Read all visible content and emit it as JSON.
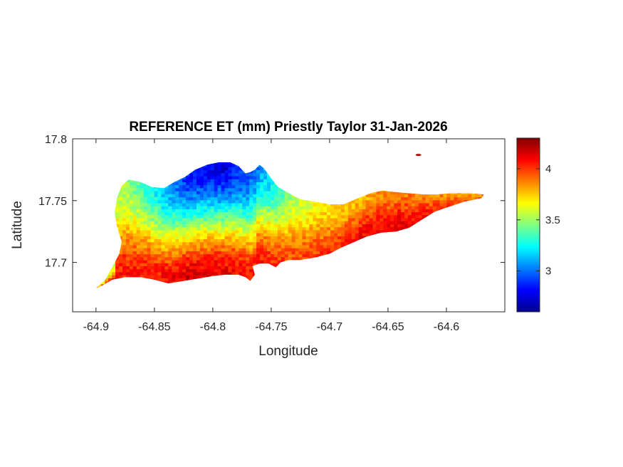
{
  "chart_data": {
    "type": "heatmap",
    "title": "REFERENCE ET (mm) Priestly Taylor 31-Jan-2026",
    "xlabel": "Longitude",
    "ylabel": "Latitude",
    "xlim": [
      -64.92,
      -64.55
    ],
    "ylim": [
      17.66,
      17.8
    ],
    "x_ticks": [
      -64.9,
      -64.85,
      -64.8,
      -64.75,
      -64.7,
      -64.65,
      -64.6
    ],
    "x_tick_labels": [
      "-64.9",
      "-64.85",
      "-64.8",
      "-64.75",
      "-64.7",
      "-64.65",
      "-64.6"
    ],
    "y_ticks": [
      17.7,
      17.75,
      17.8
    ],
    "y_tick_labels": [
      "17.7",
      "17.75",
      "17.8"
    ],
    "colorbar": {
      "colormap": "jet",
      "range": [
        2.6,
        4.3
      ],
      "ticks": [
        3,
        3.5,
        4
      ],
      "tick_labels": [
        "3",
        "3.5",
        "4"
      ]
    },
    "outline": [
      [
        -64.9,
        17.679
      ],
      [
        -64.892,
        17.686
      ],
      [
        -64.885,
        17.698
      ],
      [
        -64.88,
        17.707
      ],
      [
        -64.878,
        17.717
      ],
      [
        -64.882,
        17.729
      ],
      [
        -64.884,
        17.74
      ],
      [
        -64.882,
        17.752
      ],
      [
        -64.878,
        17.762
      ],
      [
        -64.872,
        17.767
      ],
      [
        -64.862,
        17.765
      ],
      [
        -64.852,
        17.761
      ],
      [
        -64.842,
        17.76
      ],
      [
        -64.833,
        17.765
      ],
      [
        -64.824,
        17.769
      ],
      [
        -64.815,
        17.775
      ],
      [
        -64.805,
        17.779
      ],
      [
        -64.795,
        17.781
      ],
      [
        -64.785,
        17.781
      ],
      [
        -64.778,
        17.778
      ],
      [
        -64.772,
        17.772
      ],
      [
        -64.768,
        17.773
      ],
      [
        -64.764,
        17.775
      ],
      [
        -64.76,
        17.779
      ],
      [
        -64.756,
        17.776
      ],
      [
        -64.75,
        17.768
      ],
      [
        -64.744,
        17.761
      ],
      [
        -64.735,
        17.756
      ],
      [
        -64.725,
        17.751
      ],
      [
        -64.712,
        17.749
      ],
      [
        -64.7,
        17.747
      ],
      [
        -64.688,
        17.747
      ],
      [
        -64.678,
        17.751
      ],
      [
        -64.665,
        17.756
      ],
      [
        -64.655,
        17.758
      ],
      [
        -64.645,
        17.757
      ],
      [
        -64.633,
        17.756
      ],
      [
        -64.62,
        17.755
      ],
      [
        -64.608,
        17.755
      ],
      [
        -64.595,
        17.756
      ],
      [
        -64.58,
        17.756
      ],
      [
        -64.568,
        17.755
      ],
      [
        -64.57,
        17.752
      ],
      [
        -64.585,
        17.749
      ],
      [
        -64.598,
        17.745
      ],
      [
        -64.61,
        17.741
      ],
      [
        -64.622,
        17.734
      ],
      [
        -64.632,
        17.728
      ],
      [
        -64.643,
        17.725
      ],
      [
        -64.656,
        17.724
      ],
      [
        -64.668,
        17.721
      ],
      [
        -64.68,
        17.716
      ],
      [
        -64.69,
        17.712
      ],
      [
        -64.7,
        17.707
      ],
      [
        -64.712,
        17.704
      ],
      [
        -64.725,
        17.702
      ],
      [
        -64.735,
        17.702
      ],
      [
        -64.742,
        17.7
      ],
      [
        -64.746,
        17.696
      ],
      [
        -64.752,
        17.699
      ],
      [
        -64.76,
        17.699
      ],
      [
        -64.766,
        17.697
      ],
      [
        -64.764,
        17.69
      ],
      [
        -64.768,
        17.685
      ],
      [
        -64.772,
        17.688
      ],
      [
        -64.778,
        17.69
      ],
      [
        -64.79,
        17.69
      ],
      [
        -64.8,
        17.689
      ],
      [
        -64.812,
        17.687
      ],
      [
        -64.825,
        17.685
      ],
      [
        -64.838,
        17.683
      ],
      [
        -64.85,
        17.686
      ],
      [
        -64.862,
        17.688
      ],
      [
        -64.875,
        17.688
      ],
      [
        -64.886,
        17.686
      ],
      [
        -64.895,
        17.681
      ]
    ],
    "islet": [
      -64.624,
      17.787
    ],
    "et_profile": [
      {
        "lon": -64.9,
        "south": 3.95,
        "north": 3.7
      },
      {
        "lon": -64.88,
        "south": 4.05,
        "north": 3.55
      },
      {
        "lon": -64.85,
        "south": 4.05,
        "north": 3.25
      },
      {
        "lon": -64.82,
        "south": 4.15,
        "north": 2.85
      },
      {
        "lon": -64.79,
        "south": 4.1,
        "north": 2.75
      },
      {
        "lon": -64.76,
        "south": 4.05,
        "north": 3.05
      },
      {
        "lon": -64.73,
        "south": 3.95,
        "north": 3.55
      },
      {
        "lon": -64.7,
        "south": 4.0,
        "north": 3.7
      },
      {
        "lon": -64.67,
        "south": 4.1,
        "north": 3.8
      },
      {
        "lon": -64.64,
        "south": 4.15,
        "north": 3.9
      },
      {
        "lon": -64.61,
        "south": 4.05,
        "north": 3.85
      },
      {
        "lon": -64.58,
        "south": 3.95,
        "north": 3.8
      }
    ]
  }
}
